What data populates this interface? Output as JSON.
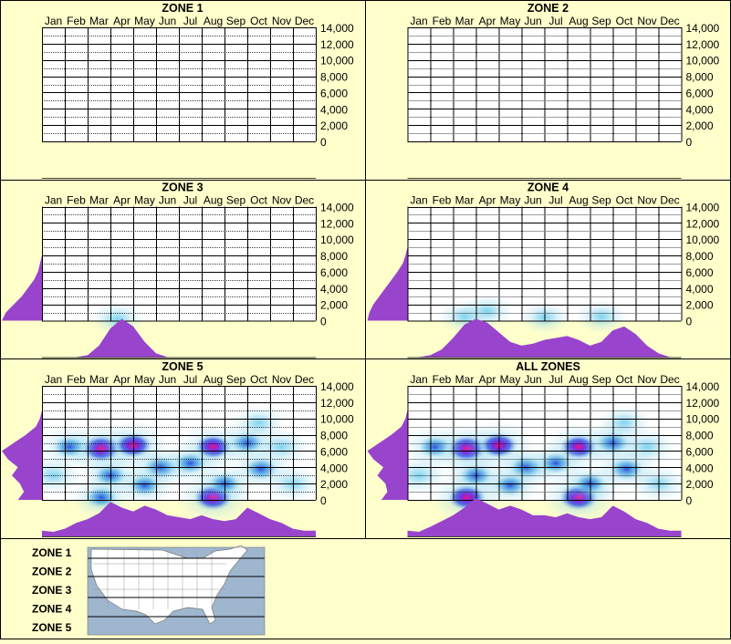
{
  "months": [
    "Jan",
    "Feb",
    "Mar",
    "Apr",
    "May",
    "Jun",
    "Jul",
    "Aug",
    "Sep",
    "Oct",
    "Nov",
    "Dec"
  ],
  "y_ticks": [
    "14,000",
    "12,000",
    "10,000",
    "8,000",
    "6,000",
    "4,000",
    "2,000",
    "0"
  ],
  "legend_zones": [
    "ZONE 1",
    "ZONE 2",
    "ZONE 3",
    "ZONE 4",
    "ZONE 5"
  ],
  "colors": {
    "background": "#ffffcc",
    "density": "#9944cc",
    "heat_low": "#aaddee",
    "heat_mid": "#2244dd",
    "heat_high": "#ee1188",
    "map_water": "#9fb6cf",
    "map_land": "#ffffff"
  },
  "chart_data": [
    {
      "type": "heatmap",
      "title": "ZONE 1",
      "xlabel": "",
      "ylabel": "",
      "categories": [
        "Jan",
        "Feb",
        "Mar",
        "Apr",
        "May",
        "Jun",
        "Jul",
        "Aug",
        "Sep",
        "Oct",
        "Nov",
        "Dec"
      ],
      "ylim": [
        0,
        14000
      ],
      "grid": true,
      "hotspots": [],
      "month_density": [],
      "elevation_density": []
    },
    {
      "type": "heatmap",
      "title": "ZONE 2",
      "xlabel": "",
      "ylabel": "",
      "categories": [
        "Jan",
        "Feb",
        "Mar",
        "Apr",
        "May",
        "Jun",
        "Jul",
        "Aug",
        "Sep",
        "Oct",
        "Nov",
        "Dec"
      ],
      "ylim": [
        0,
        14000
      ],
      "grid": true,
      "hotspots": [],
      "month_density": [],
      "elevation_density": []
    },
    {
      "type": "heatmap",
      "title": "ZONE 3",
      "xlabel": "",
      "ylabel": "",
      "categories": [
        "Jan",
        "Feb",
        "Mar",
        "Apr",
        "May",
        "Jun",
        "Jul",
        "Aug",
        "Sep",
        "Oct",
        "Nov",
        "Dec"
      ],
      "ylim": [
        0,
        14000
      ],
      "grid": true,
      "hotspots": [
        {
          "month": 3.3,
          "elevation": 200,
          "intensity": 0.2
        }
      ],
      "month_density": [
        0,
        0,
        0,
        0,
        0.05,
        0.3,
        0.75,
        1,
        0.8,
        0.4,
        0.1,
        0,
        0,
        0,
        0,
        0,
        0,
        0,
        0,
        0,
        0,
        0,
        0,
        0,
        0
      ],
      "elevation_density": [
        1,
        0.9,
        0.7,
        0.5,
        0.35,
        0.2,
        0.1,
        0.05,
        0,
        0,
        0,
        0,
        0,
        0,
        0
      ]
    },
    {
      "type": "heatmap",
      "title": "ZONE 4",
      "xlabel": "",
      "ylabel": "",
      "categories": [
        "Jan",
        "Feb",
        "Mar",
        "Apr",
        "May",
        "Jun",
        "Jul",
        "Aug",
        "Sep",
        "Oct",
        "Nov",
        "Dec"
      ],
      "ylim": [
        0,
        14000
      ],
      "grid": true,
      "hotspots": [
        {
          "month": 2.5,
          "elevation": 500,
          "intensity": 0.15
        },
        {
          "month": 3.5,
          "elevation": 1200,
          "intensity": 0.12
        },
        {
          "month": 6.0,
          "elevation": 400,
          "intensity": 0.1
        },
        {
          "month": 8.5,
          "elevation": 500,
          "intensity": 0.14
        }
      ],
      "month_density": [
        0,
        0,
        0.05,
        0.2,
        0.5,
        0.85,
        1,
        0.9,
        0.65,
        0.4,
        0.3,
        0.35,
        0.45,
        0.5,
        0.55,
        0.45,
        0.3,
        0.4,
        0.7,
        0.8,
        0.6,
        0.3,
        0.1,
        0,
        0
      ],
      "elevation_density": [
        1,
        0.95,
        0.85,
        0.7,
        0.55,
        0.4,
        0.25,
        0.12,
        0.05,
        0,
        0,
        0,
        0,
        0,
        0
      ]
    },
    {
      "type": "heatmap",
      "title": "ZONE 5",
      "xlabel": "",
      "ylabel": "",
      "categories": [
        "Jan",
        "Feb",
        "Mar",
        "Apr",
        "May",
        "Jun",
        "Jul",
        "Aug",
        "Sep",
        "Oct",
        "Nov",
        "Dec"
      ],
      "ylim": [
        0,
        14000
      ],
      "grid": true,
      "hotspots": [
        {
          "month": 2.6,
          "elevation": 6300,
          "intensity": 1.0
        },
        {
          "month": 4.0,
          "elevation": 6700,
          "intensity": 0.85
        },
        {
          "month": 5.2,
          "elevation": 4000,
          "intensity": 0.6
        },
        {
          "month": 7.5,
          "elevation": 6500,
          "intensity": 0.8
        },
        {
          "month": 7.5,
          "elevation": 300,
          "intensity": 0.95
        },
        {
          "month": 2.6,
          "elevation": 300,
          "intensity": 0.5
        },
        {
          "month": 9.0,
          "elevation": 7000,
          "intensity": 0.55
        },
        {
          "month": 9.6,
          "elevation": 3800,
          "intensity": 0.55
        },
        {
          "month": 3.0,
          "elevation": 3000,
          "intensity": 0.5
        },
        {
          "month": 1.2,
          "elevation": 6500,
          "intensity": 0.5
        },
        {
          "month": 6.5,
          "elevation": 4500,
          "intensity": 0.45
        },
        {
          "month": 8.0,
          "elevation": 2000,
          "intensity": 0.45
        },
        {
          "month": 4.5,
          "elevation": 1800,
          "intensity": 0.45
        },
        {
          "month": 10.5,
          "elevation": 6500,
          "intensity": 0.3
        },
        {
          "month": 11.0,
          "elevation": 2000,
          "intensity": 0.25
        },
        {
          "month": 0.5,
          "elevation": 3000,
          "intensity": 0.3
        },
        {
          "month": 9.5,
          "elevation": 9500,
          "intensity": 0.15
        }
      ],
      "month_density": [
        0.15,
        0.12,
        0.2,
        0.35,
        0.45,
        0.6,
        0.9,
        0.75,
        0.65,
        0.8,
        0.7,
        0.55,
        0.5,
        0.45,
        0.55,
        0.45,
        0.4,
        0.45,
        0.75,
        0.6,
        0.45,
        0.35,
        0.2,
        0.15,
        0.15
      ],
      "elevation_density": [
        0.6,
        0.45,
        0.55,
        0.75,
        0.6,
        0.85,
        1,
        0.7,
        0.4,
        0.15,
        0.05,
        0,
        0,
        0,
        0
      ]
    },
    {
      "type": "heatmap",
      "title": "ALL ZONES",
      "xlabel": "",
      "ylabel": "",
      "categories": [
        "Jan",
        "Feb",
        "Mar",
        "Apr",
        "May",
        "Jun",
        "Jul",
        "Aug",
        "Sep",
        "Oct",
        "Nov",
        "Dec"
      ],
      "ylim": [
        0,
        14000
      ],
      "grid": true,
      "hotspots": [
        {
          "month": 2.6,
          "elevation": 6300,
          "intensity": 1.0
        },
        {
          "month": 4.0,
          "elevation": 6700,
          "intensity": 0.85
        },
        {
          "month": 5.2,
          "elevation": 4000,
          "intensity": 0.6
        },
        {
          "month": 7.5,
          "elevation": 6500,
          "intensity": 0.8
        },
        {
          "month": 7.5,
          "elevation": 300,
          "intensity": 0.95
        },
        {
          "month": 2.6,
          "elevation": 300,
          "intensity": 0.9
        },
        {
          "month": 9.0,
          "elevation": 7000,
          "intensity": 0.55
        },
        {
          "month": 9.6,
          "elevation": 3800,
          "intensity": 0.55
        },
        {
          "month": 3.0,
          "elevation": 3000,
          "intensity": 0.5
        },
        {
          "month": 1.2,
          "elevation": 6500,
          "intensity": 0.5
        },
        {
          "month": 6.5,
          "elevation": 4500,
          "intensity": 0.45
        },
        {
          "month": 8.0,
          "elevation": 2000,
          "intensity": 0.45
        },
        {
          "month": 4.5,
          "elevation": 1800,
          "intensity": 0.45
        },
        {
          "month": 10.5,
          "elevation": 6500,
          "intensity": 0.3
        },
        {
          "month": 11.0,
          "elevation": 2000,
          "intensity": 0.25
        },
        {
          "month": 0.5,
          "elevation": 3000,
          "intensity": 0.3
        },
        {
          "month": 9.5,
          "elevation": 9500,
          "intensity": 0.15
        }
      ],
      "month_density": [
        0.15,
        0.12,
        0.25,
        0.4,
        0.55,
        0.75,
        1,
        0.85,
        0.7,
        0.8,
        0.7,
        0.55,
        0.55,
        0.5,
        0.6,
        0.5,
        0.45,
        0.5,
        0.8,
        0.65,
        0.45,
        0.35,
        0.2,
        0.15,
        0.15
      ],
      "elevation_density": [
        0.65,
        0.5,
        0.55,
        0.75,
        0.6,
        0.85,
        1,
        0.7,
        0.4,
        0.15,
        0.05,
        0,
        0,
        0,
        0
      ]
    }
  ]
}
